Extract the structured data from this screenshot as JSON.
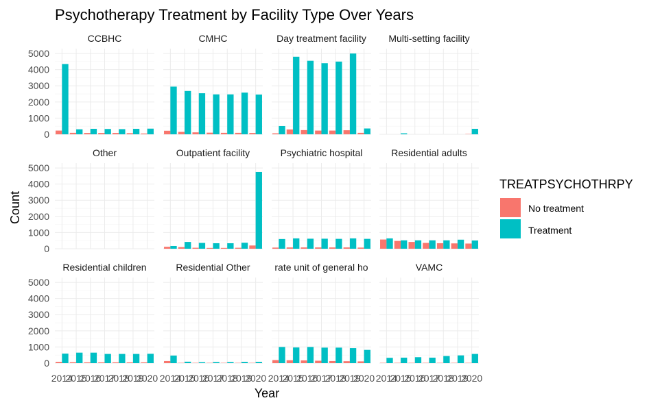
{
  "chart_data": {
    "type": "bar",
    "title": "Psychotherapy Treatment by Facility Type Over Years",
    "xlabel": "Year",
    "ylabel": "Count",
    "x": [
      "2014",
      "2015",
      "2016",
      "2017",
      "2018",
      "2019",
      "2020"
    ],
    "ylim": [
      0,
      5300
    ],
    "yticks": [
      0,
      1000,
      2000,
      3000,
      4000,
      5000
    ],
    "xticks_label": [
      "2014",
      "2015",
      "2016",
      "2017",
      "2018",
      "2019",
      "2020"
    ],
    "grid": true,
    "legend": {
      "title": "TREATPSYCHOTHRPY",
      "position": "right",
      "entries": [
        {
          "name": "No treatment",
          "color": "#F8766D"
        },
        {
          "name": "Treatment",
          "color": "#00BFC4"
        }
      ]
    },
    "facets": [
      {
        "label": "CCBHC",
        "series": [
          {
            "name": "No treatment",
            "values": [
              230,
              90,
              80,
              80,
              80,
              70,
              50
            ]
          },
          {
            "name": "Treatment",
            "values": [
              4350,
              310,
              340,
              330,
              320,
              340,
              350
            ]
          }
        ]
      },
      {
        "label": "CMHC",
        "series": [
          {
            "name": "No treatment",
            "values": [
              220,
              150,
              120,
              100,
              90,
              90,
              80
            ]
          },
          {
            "name": "Treatment",
            "values": [
              2950,
              2680,
              2540,
              2470,
              2470,
              2580,
              2460
            ]
          }
        ]
      },
      {
        "label": "Day treatment facility",
        "series": [
          {
            "name": "No treatment",
            "values": [
              60,
              300,
              260,
              230,
              230,
              250,
              90
            ]
          },
          {
            "name": "Treatment",
            "values": [
              510,
              4800,
              4550,
              4400,
              4500,
              5000,
              360
            ]
          }
        ]
      },
      {
        "label": "Multi-setting facility",
        "series": [
          {
            "name": "No treatment",
            "values": [
              0,
              0,
              0,
              0,
              0,
              0,
              20
            ]
          },
          {
            "name": "Treatment",
            "values": [
              0,
              60,
              0,
              0,
              0,
              0,
              340
            ]
          }
        ]
      },
      {
        "label": "Other",
        "series": [
          {
            "name": "No treatment",
            "values": [
              0,
              0,
              0,
              0,
              0,
              0,
              0
            ]
          },
          {
            "name": "Treatment",
            "values": [
              0,
              0,
              0,
              0,
              0,
              0,
              0
            ]
          }
        ]
      },
      {
        "label": "Outpatient facility",
        "series": [
          {
            "name": "No treatment",
            "values": [
              120,
              100,
              60,
              50,
              50,
              60,
              200
            ]
          },
          {
            "name": "Treatment",
            "values": [
              170,
              420,
              360,
              340,
              340,
              370,
              4750
            ]
          }
        ]
      },
      {
        "label": "Psychiatric hospital",
        "series": [
          {
            "name": "No treatment",
            "values": [
              70,
              80,
              80,
              80,
              80,
              80,
              70
            ]
          },
          {
            "name": "Treatment",
            "values": [
              600,
              640,
              620,
              620,
              610,
              640,
              610
            ]
          }
        ]
      },
      {
        "label": "Residential adults",
        "series": [
          {
            "name": "No treatment",
            "values": [
              570,
              480,
              420,
              360,
              340,
              330,
              320
            ]
          },
          {
            "name": "Treatment",
            "values": [
              640,
              520,
              520,
              520,
              520,
              560,
              510
            ]
          }
        ]
      },
      {
        "label": "Residential children",
        "series": [
          {
            "name": "No treatment",
            "values": [
              80,
              60,
              50,
              50,
              50,
              50,
              50
            ]
          },
          {
            "name": "Treatment",
            "values": [
              590,
              650,
              650,
              570,
              570,
              570,
              580
            ]
          }
        ]
      },
      {
        "label": "Residential Other",
        "series": [
          {
            "name": "No treatment",
            "values": [
              130,
              20,
              20,
              20,
              20,
              20,
              20
            ]
          },
          {
            "name": "Treatment",
            "values": [
              470,
              90,
              60,
              70,
              70,
              80,
              80
            ]
          }
        ]
      },
      {
        "label": "rate unit of general ho",
        "series": [
          {
            "name": "No treatment",
            "values": [
              190,
              180,
              170,
              150,
              130,
              120,
              110
            ]
          },
          {
            "name": "Treatment",
            "values": [
              1000,
              970,
              1000,
              960,
              960,
              930,
              820
            ]
          }
        ]
      },
      {
        "label": "VAMC",
        "series": [
          {
            "name": "No treatment",
            "values": [
              20,
              20,
              20,
              20,
              20,
              20,
              20
            ]
          },
          {
            "name": "Treatment",
            "values": [
              330,
              340,
              370,
              340,
              440,
              480,
              570
            ]
          }
        ]
      }
    ]
  }
}
